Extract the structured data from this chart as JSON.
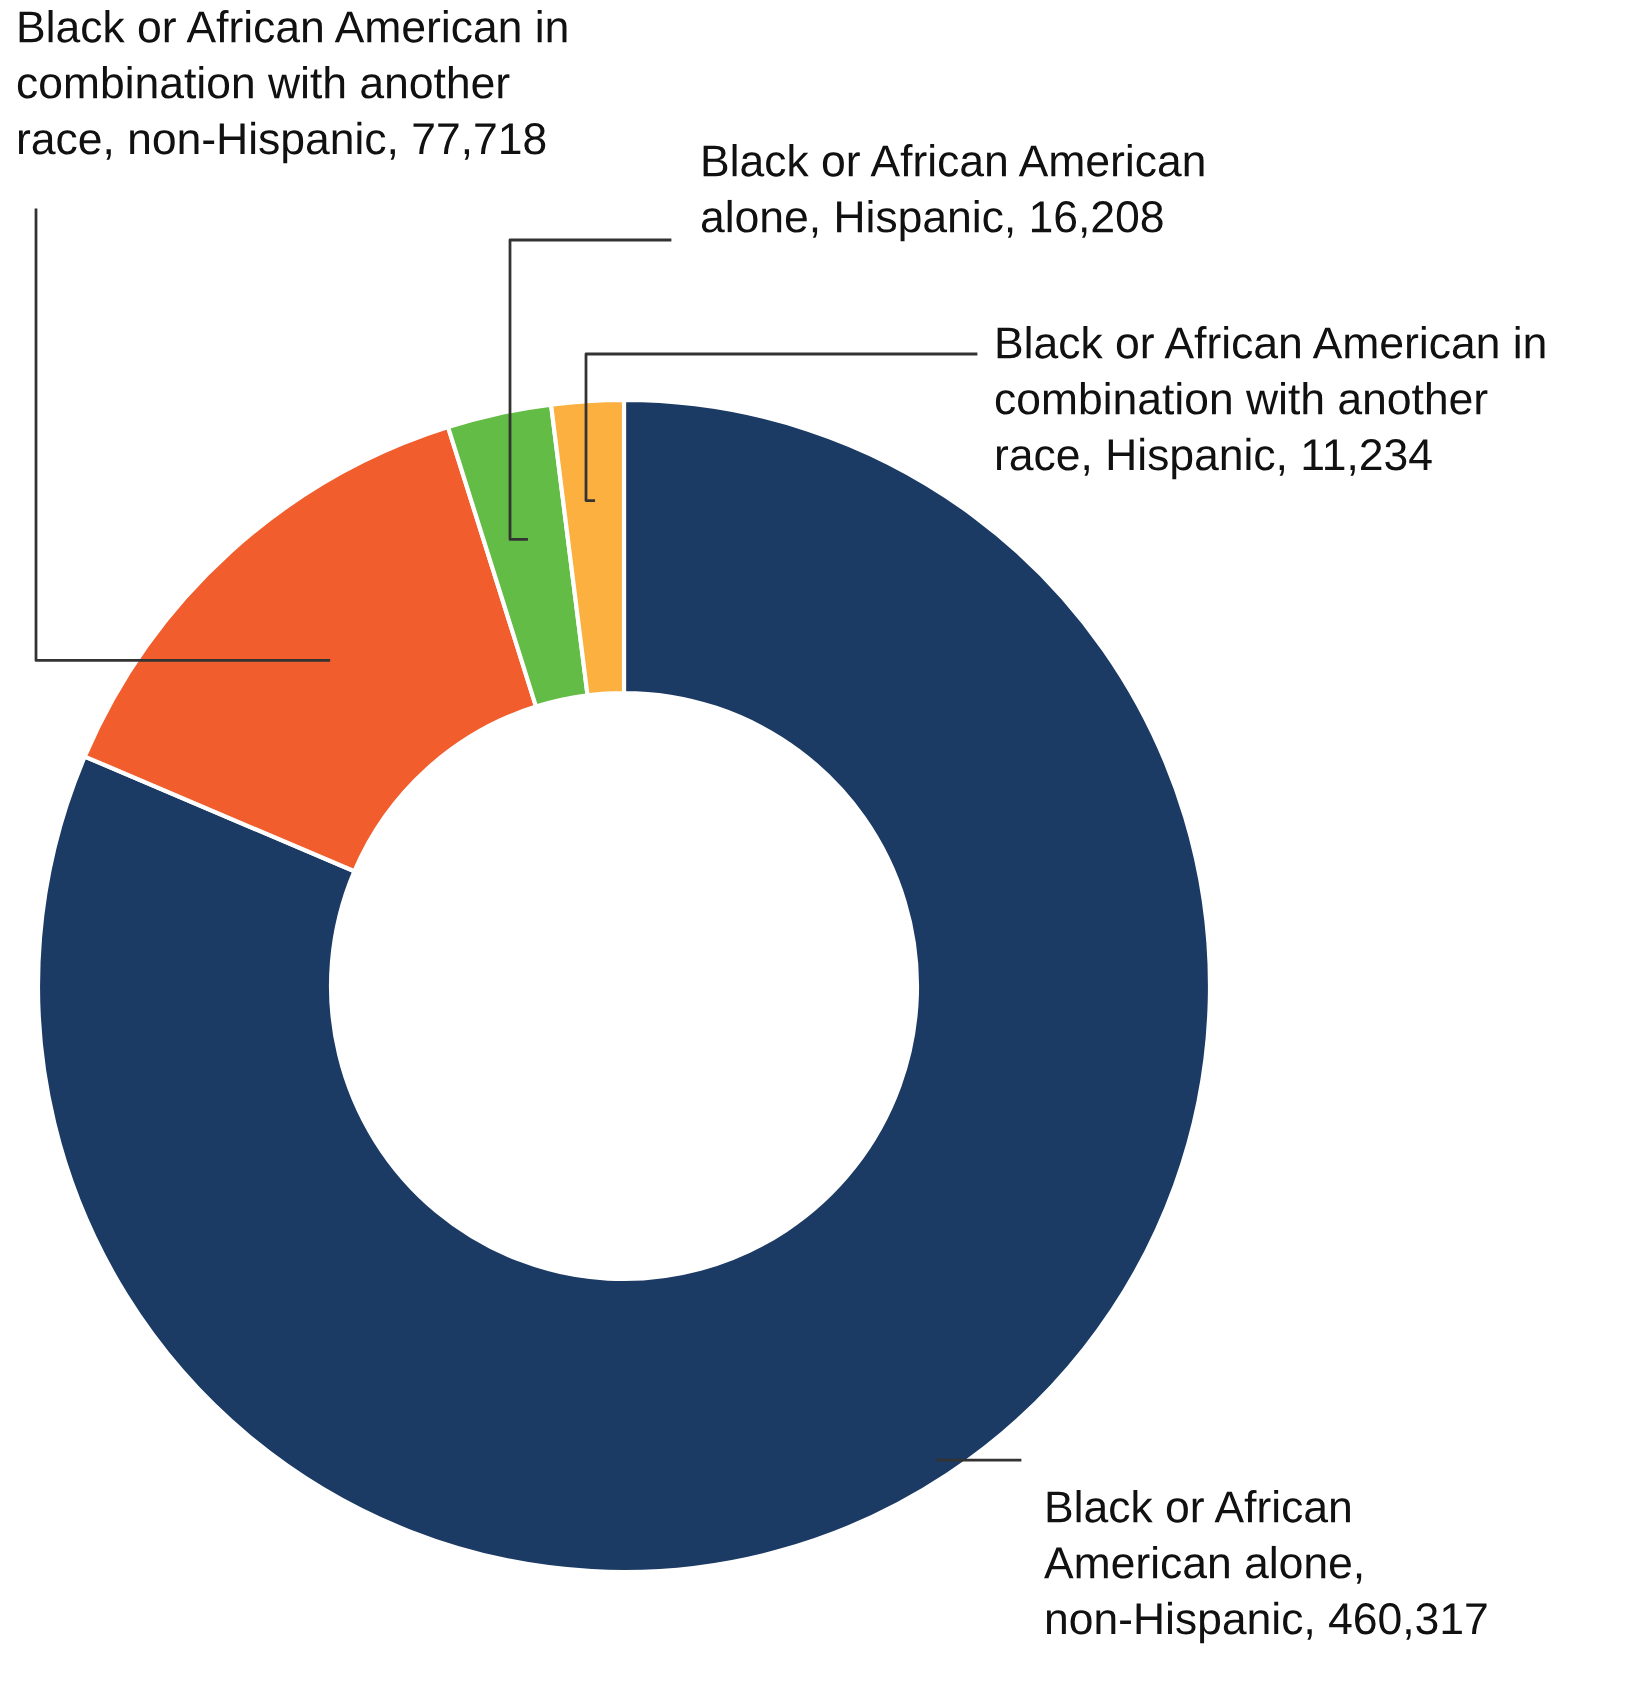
{
  "chart_data": {
    "type": "donut",
    "categories": [
      "Black or African American alone, non-Hispanic, 460,317",
      "Black or African American in combination with another race, non-Hispanic, 77,718",
      "Black or African American alone, Hispanic, 16,208",
      "Black or African American in combination with another race, Hispanic, 11,234"
    ],
    "values": [
      460317,
      77718,
      16208,
      11234
    ],
    "colors": [
      "#1b3a64",
      "#f15d2c",
      "#63bc46",
      "#fbb040"
    ]
  }
}
